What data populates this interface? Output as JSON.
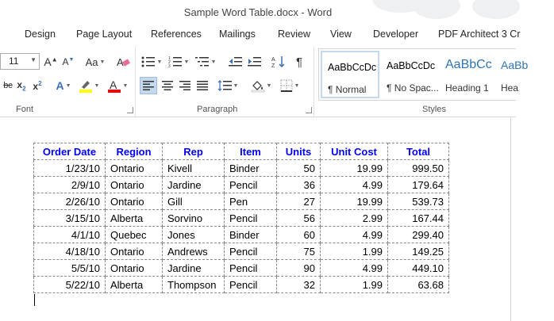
{
  "window": {
    "title": "Sample Word Table.docx - Word"
  },
  "tabs": [
    "Design",
    "Page Layout",
    "References",
    "Mailings",
    "Review",
    "View",
    "Developer",
    "PDF Architect 3 Cr"
  ],
  "ribbon": {
    "font_size": "11",
    "change_case_label": "Aa",
    "font_group_label": "Font",
    "paragraph_group_label": "Paragraph",
    "styles_group_label": "Styles",
    "colors": {
      "highlight": "#ffff00",
      "font_color": "#ff0000",
      "selected_bg": "#c5d9ee"
    },
    "styles": [
      {
        "preview": "AaBbCcDc",
        "name": "¶ Normal"
      },
      {
        "preview": "AaBbCcDc",
        "name": "¶ No Spac..."
      },
      {
        "preview": "AaBbCc",
        "name": "Heading 1"
      },
      {
        "preview": "AaBb",
        "name": "Hea"
      }
    ]
  },
  "table": {
    "headers": [
      "Order Date",
      "Region",
      "Rep",
      "Item",
      "Units",
      "Unit Cost",
      "Total"
    ],
    "rows": [
      [
        "1/23/10",
        "Ontario",
        "Kivell",
        "Binder",
        "50",
        "19.99",
        "999.50"
      ],
      [
        "2/9/10",
        "Ontario",
        "Jardine",
        "Pencil",
        "36",
        "4.99",
        "179.64"
      ],
      [
        "2/26/10",
        "Ontario",
        "Gill",
        "Pen",
        "27",
        "19.99",
        "539.73"
      ],
      [
        "3/15/10",
        "Alberta",
        "Sorvino",
        "Pencil",
        "56",
        "2.99",
        "167.44"
      ],
      [
        "4/1/10",
        "Quebec",
        "Jones",
        "Binder",
        "60",
        "4.99",
        "299.40"
      ],
      [
        "4/18/10",
        "Ontario",
        "Andrews",
        "Pencil",
        "75",
        "1.99",
        "149.25"
      ],
      [
        "5/5/10",
        "Ontario",
        "Jardine",
        "Pencil",
        "90",
        "4.99",
        "449.10"
      ],
      [
        "5/22/10",
        "Alberta",
        "Thompson",
        "Pencil",
        "32",
        "1.99",
        "63.68"
      ]
    ]
  }
}
